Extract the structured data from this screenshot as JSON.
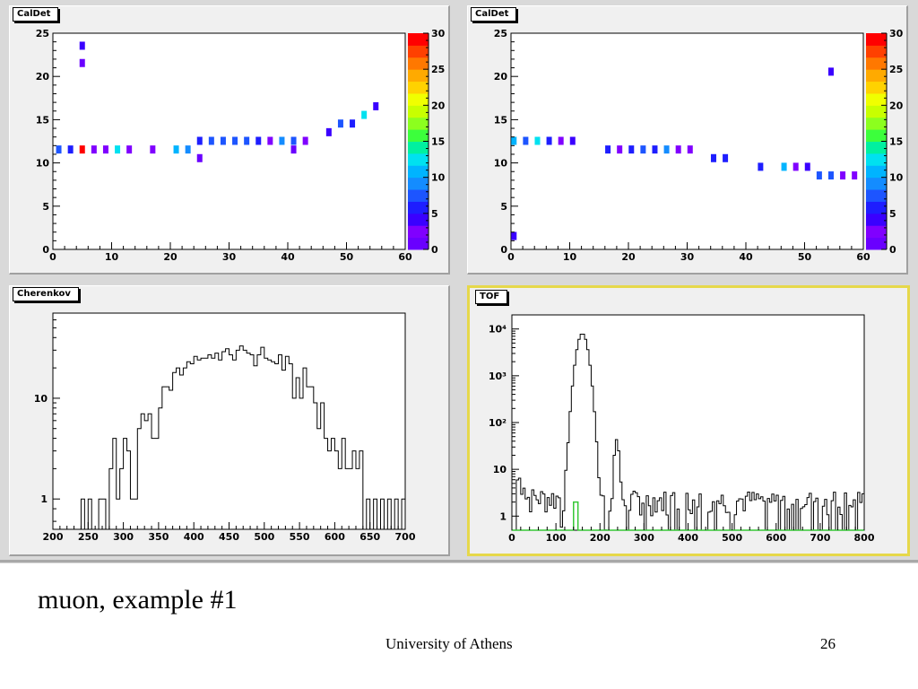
{
  "slide": {
    "caption": "muon, example #1",
    "footer": "University of Athens",
    "page_number": "26"
  },
  "colors": {
    "pad_bg": "#f0f0f0",
    "plot_bg": "#ffffff",
    "hist_line": "#000000",
    "tof_secondary": "#35c835",
    "active_pad_border": "#e6d84a",
    "palette": [
      "#6a00ff",
      "#8000ff",
      "#3a00ff",
      "#1e1eff",
      "#1d55ff",
      "#148cff",
      "#00b4ff",
      "#00e1f0",
      "#00f0a0",
      "#3cff3c",
      "#8cff1e",
      "#c8ff00",
      "#f0ff00",
      "#ffd200",
      "#ffaa00",
      "#ff7800",
      "#ff4000",
      "#ff0000"
    ]
  },
  "chart_data": [
    {
      "title": "CalDet",
      "type": "heatmap",
      "xlim": [
        0,
        60
      ],
      "ylim": [
        0,
        25
      ],
      "x_ticks": [
        0,
        10,
        20,
        30,
        40,
        50,
        60
      ],
      "y_ticks": [
        0,
        5,
        10,
        15,
        20,
        25
      ],
      "z_range": [
        0,
        30
      ],
      "z_ticks": [
        0,
        5,
        10,
        15,
        20,
        25,
        30
      ],
      "cells": [
        {
          "x": 1,
          "y": 11.5,
          "z": 7
        },
        {
          "x": 3,
          "y": 11.5,
          "z": 6
        },
        {
          "x": 5,
          "y": 11.5,
          "z": 30
        },
        {
          "x": 7,
          "y": 11.5,
          "z": 3
        },
        {
          "x": 9,
          "y": 11.5,
          "z": 2
        },
        {
          "x": 11,
          "y": 11.5,
          "z": 13
        },
        {
          "x": 13,
          "y": 11.5,
          "z": 2
        },
        {
          "x": 17,
          "y": 11.5,
          "z": 3
        },
        {
          "x": 21,
          "y": 11.5,
          "z": 11
        },
        {
          "x": 23,
          "y": 11.5,
          "z": 9
        },
        {
          "x": 25,
          "y": 10.5,
          "z": 1
        },
        {
          "x": 25,
          "y": 12.5,
          "z": 6
        },
        {
          "x": 27,
          "y": 12.5,
          "z": 7
        },
        {
          "x": 29,
          "y": 12.5,
          "z": 8
        },
        {
          "x": 31,
          "y": 12.5,
          "z": 8
        },
        {
          "x": 33,
          "y": 12.5,
          "z": 7
        },
        {
          "x": 35,
          "y": 12.5,
          "z": 6
        },
        {
          "x": 37,
          "y": 12.5,
          "z": 3
        },
        {
          "x": 39,
          "y": 12.5,
          "z": 9
        },
        {
          "x": 41,
          "y": 12.5,
          "z": 8
        },
        {
          "x": 41,
          "y": 11.5,
          "z": 1
        },
        {
          "x": 43,
          "y": 12.5,
          "z": 3
        },
        {
          "x": 47,
          "y": 13.5,
          "z": 5
        },
        {
          "x": 49,
          "y": 14.5,
          "z": 7
        },
        {
          "x": 51,
          "y": 14.5,
          "z": 6
        },
        {
          "x": 53,
          "y": 15.5,
          "z": 13
        },
        {
          "x": 55,
          "y": 16.5,
          "z": 5
        },
        {
          "x": 5,
          "y": 21.5,
          "z": 1
        },
        {
          "x": 5,
          "y": 23.5,
          "z": 4
        }
      ]
    },
    {
      "title": "CalDet",
      "type": "heatmap",
      "xlim": [
        0,
        60
      ],
      "ylim": [
        0,
        25
      ],
      "x_ticks": [
        0,
        10,
        20,
        30,
        40,
        50,
        60
      ],
      "y_ticks": [
        0,
        5,
        10,
        15,
        20,
        25
      ],
      "z_range": [
        0,
        30
      ],
      "z_ticks": [
        0,
        5,
        10,
        15,
        20,
        25,
        30
      ],
      "cells": [
        {
          "x": 0.5,
          "y": 1.5,
          "z": 4
        },
        {
          "x": 0.5,
          "y": 12.5,
          "z": 11
        },
        {
          "x": 2.5,
          "y": 12.5,
          "z": 7
        },
        {
          "x": 4.5,
          "y": 12.5,
          "z": 12
        },
        {
          "x": 6.5,
          "y": 12.5,
          "z": 6
        },
        {
          "x": 8.5,
          "y": 12.5,
          "z": 2
        },
        {
          "x": 10.5,
          "y": 12.5,
          "z": 5
        },
        {
          "x": 16.5,
          "y": 11.5,
          "z": 6
        },
        {
          "x": 18.5,
          "y": 11.5,
          "z": 2
        },
        {
          "x": 20.5,
          "y": 11.5,
          "z": 6
        },
        {
          "x": 22.5,
          "y": 11.5,
          "z": 7
        },
        {
          "x": 24.5,
          "y": 11.5,
          "z": 6
        },
        {
          "x": 26.5,
          "y": 11.5,
          "z": 9
        },
        {
          "x": 28.5,
          "y": 11.5,
          "z": 3
        },
        {
          "x": 30.5,
          "y": 11.5,
          "z": 2
        },
        {
          "x": 34.5,
          "y": 10.5,
          "z": 6
        },
        {
          "x": 36.5,
          "y": 10.5,
          "z": 6
        },
        {
          "x": 42.5,
          "y": 9.5,
          "z": 6
        },
        {
          "x": 46.5,
          "y": 9.5,
          "z": 11
        },
        {
          "x": 48.5,
          "y": 9.5,
          "z": 3
        },
        {
          "x": 50.5,
          "y": 9.5,
          "z": 4
        },
        {
          "x": 52.5,
          "y": 8.5,
          "z": 7
        },
        {
          "x": 54.5,
          "y": 8.5,
          "z": 7
        },
        {
          "x": 56.5,
          "y": 8.5,
          "z": 2
        },
        {
          "x": 58.5,
          "y": 8.5,
          "z": 2
        },
        {
          "x": 54.5,
          "y": 20.5,
          "z": 5
        }
      ]
    },
    {
      "title": "Cherenkov",
      "type": "histogram",
      "log_y": true,
      "xlim": [
        200,
        700
      ],
      "ylim": [
        0.5,
        70
      ],
      "x_ticks": [
        200,
        250,
        300,
        350,
        400,
        450,
        500,
        550,
        600,
        650,
        700
      ],
      "y_tick_labels": [
        1,
        10
      ],
      "bin_width": 5,
      "bin_start": 240,
      "values": [
        1,
        0,
        1,
        0,
        0,
        1,
        1,
        0,
        2,
        4,
        1,
        2,
        4,
        3,
        1,
        1,
        5,
        7,
        6,
        7,
        4,
        4,
        8,
        13,
        13,
        12,
        18,
        20,
        17,
        20,
        23,
        22,
        26,
        24,
        25,
        25,
        27,
        25,
        28,
        24,
        29,
        31,
        27,
        24,
        30,
        33,
        30,
        28,
        27,
        21,
        27,
        32,
        25,
        24,
        23,
        22,
        27,
        19,
        26,
        22,
        10,
        16,
        10,
        20,
        13,
        13,
        9,
        5,
        9,
        4,
        3,
        4,
        3,
        2,
        4,
        2,
        2,
        3,
        2,
        3,
        0,
        1,
        0,
        1,
        0,
        1,
        0,
        1,
        0,
        1,
        0,
        1
      ]
    },
    {
      "title": "TOF",
      "type": "histogram",
      "log_y": true,
      "xlim": [
        0,
        800
      ],
      "ylim": [
        0.5,
        20000
      ],
      "x_ticks": [
        0,
        100,
        200,
        300,
        400,
        500,
        600,
        700,
        800
      ],
      "y_tick_labels": [
        "1",
        "10",
        "10²",
        "10³",
        "10⁴"
      ],
      "secondary": {
        "bin_x": [
          140,
          150
        ],
        "value": 2
      }
    }
  ]
}
